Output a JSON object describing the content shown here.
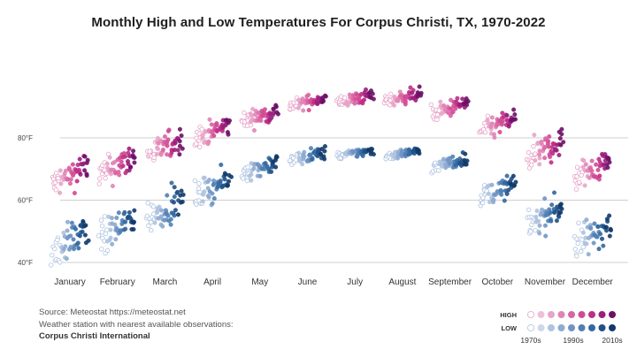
{
  "chart_data": {
    "type": "scatter",
    "title": "Monthly High and Low Temperatures For Corpus Christi, TX, 1970-2022",
    "xlabel": "",
    "ylabel": "",
    "categories": [
      "January",
      "February",
      "March",
      "April",
      "May",
      "June",
      "July",
      "August",
      "September",
      "October",
      "November",
      "December"
    ],
    "y_ticks": [
      "40°F",
      "60°F",
      "80°F"
    ],
    "y_tick_values": [
      40,
      60,
      80
    ],
    "ylim": [
      38,
      97
    ],
    "grid": true,
    "years": [
      1970,
      2022
    ],
    "series": [
      {
        "name": "HIGH",
        "monthly_mean": [
          68,
          71,
          77,
          82,
          87,
          91.5,
          92.5,
          93,
          89.5,
          84,
          76,
          70
        ],
        "monthly_spread": [
          7,
          7,
          6,
          5,
          4,
          3,
          3,
          3,
          4,
          5,
          7,
          7
        ],
        "color_scale": [
          "#f3dce9",
          "#eec1da",
          "#e8a3c8",
          "#e184b6",
          "#d966a4",
          "#d14a94",
          "#be2f88",
          "#9b1f7c",
          "#6e0f68"
        ]
      },
      {
        "name": "LOW",
        "monthly_mean": [
          47,
          51,
          57,
          64,
          70.5,
          74,
          75,
          75,
          72,
          63,
          55,
          49
        ],
        "monthly_spread": [
          8,
          8,
          7,
          6,
          4,
          3,
          2,
          2,
          3,
          5,
          7,
          8
        ],
        "color_scale": [
          "#e6ebf4",
          "#cdd8ea",
          "#aec3df",
          "#8eabd1",
          "#6f94c3",
          "#4f7fb5",
          "#3469a0",
          "#1f5187",
          "#123a6a"
        ]
      }
    ]
  },
  "source": {
    "line1": "Source: Meteostat https://meteostat.net",
    "line2": "Weather station with nearest available observations:",
    "line3": "Corpus Christi International"
  },
  "legend": {
    "high_label": "HIGH",
    "low_label": "LOW",
    "tick_start": "1970s",
    "tick_mid": "1990s",
    "tick_end": "2010s"
  }
}
